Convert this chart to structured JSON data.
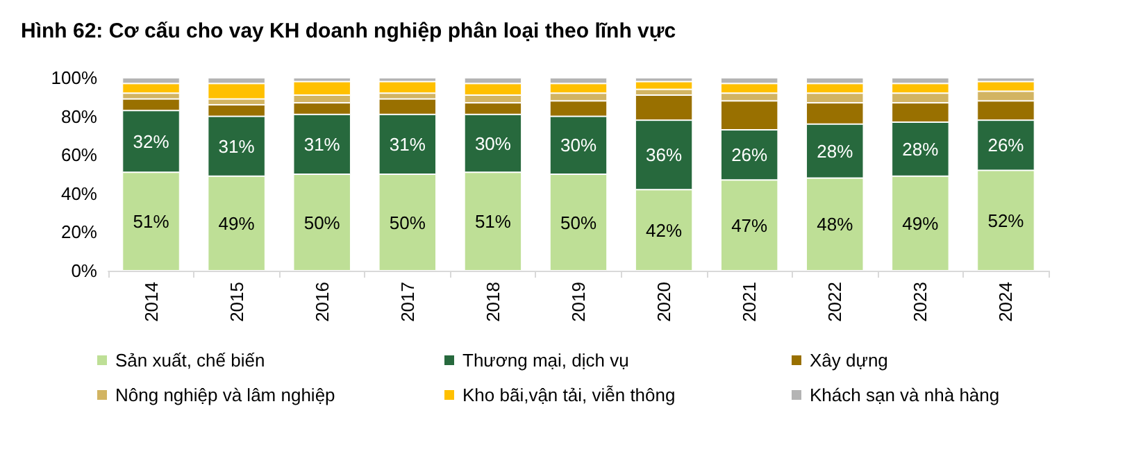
{
  "chart_data": {
    "type": "bar",
    "title": "Hình 62: Cơ cấu cho vay KH doanh nghiệp phân loại theo lĩnh vực",
    "categories": [
      "2014",
      "2015",
      "2016",
      "2017",
      "2018",
      "2019",
      "2020",
      "2021",
      "2022",
      "2023",
      "2024"
    ],
    "stacked": true,
    "legend": "bottom",
    "grid": false,
    "ylim": [
      0,
      100
    ],
    "yticks": [
      {
        "value": 0,
        "label": "0%"
      },
      {
        "value": 20,
        "label": "20%"
      },
      {
        "value": 40,
        "label": "40%"
      },
      {
        "value": 60,
        "label": "60%"
      },
      {
        "value": 80,
        "label": "80%"
      },
      {
        "value": 100,
        "label": "100%"
      }
    ],
    "series": [
      {
        "name": "Sản xuất, chế biến",
        "color": "#bedf96",
        "values": [
          51,
          49,
          50,
          50,
          51,
          50,
          42,
          47,
          48,
          49,
          52
        ],
        "value_labels": [
          "51%",
          "49%",
          "50%",
          "50%",
          "51%",
          "50%",
          "42%",
          "47%",
          "48%",
          "49%",
          "52%"
        ]
      },
      {
        "name": "Thương mại, dịch vụ",
        "color": "#27693d",
        "values": [
          32,
          31,
          31,
          31,
          30,
          30,
          36,
          26,
          28,
          28,
          26
        ],
        "value_labels": [
          "32%",
          "31%",
          "31%",
          "31%",
          "30%",
          "30%",
          "36%",
          "26%",
          "28%",
          "28%",
          "26%"
        ]
      },
      {
        "name": "Xây dựng",
        "color": "#997000",
        "values": [
          6,
          6,
          6,
          8,
          6,
          8,
          13,
          15,
          11,
          10,
          10
        ]
      },
      {
        "name": "Nông nghiệp và lâm nghiệp",
        "color": "#d2b462",
        "values": [
          3,
          3,
          4,
          3,
          4,
          4,
          3,
          4,
          5,
          5,
          5
        ]
      },
      {
        "name": "Kho bãi,vận tải, viễn thông",
        "color": "#ffc000",
        "values": [
          5,
          8,
          7,
          6,
          6,
          5,
          4,
          5,
          5,
          5,
          5
        ]
      },
      {
        "name": "Khách sạn và nhà hàng",
        "color": "#b4b4b4",
        "values": [
          3,
          3,
          2,
          2,
          3,
          3,
          2,
          3,
          3,
          3,
          2
        ]
      }
    ]
  }
}
